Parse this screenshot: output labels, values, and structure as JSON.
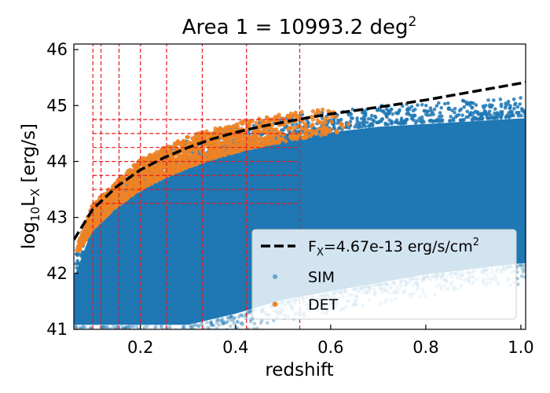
{
  "chart_data": {
    "type": "scatter",
    "title": "Area 1 = 10993.2 deg",
    "title_superscript": "2",
    "xlabel": "redshift",
    "ylabel_main": "log",
    "ylabel_sub": "10",
    "ylabel_L": "L",
    "ylabel_Lsub": "X",
    "ylabel_units": " [erg/s]",
    "xlim": [
      0.06,
      1.01
    ],
    "ylim": [
      41,
      46.1
    ],
    "xticks": [
      0.2,
      0.4,
      0.6,
      0.8,
      1.0
    ],
    "xtick_labels": [
      "0.2",
      "0.4",
      "0.6",
      "0.8",
      "1.0"
    ],
    "yticks": [
      41,
      42,
      43,
      44,
      45,
      46
    ],
    "ytick_labels": [
      "41",
      "42",
      "43",
      "44",
      "45",
      "46"
    ],
    "series": [
      {
        "name": "SIM",
        "color": "#1f77b4",
        "description_points": "dense cloud",
        "upper_edge": [
          [
            0.06,
            42.0
          ],
          [
            0.1,
            42.9
          ],
          [
            0.2,
            43.7
          ],
          [
            0.3,
            44.1
          ],
          [
            0.4,
            44.35
          ],
          [
            0.5,
            44.5
          ],
          [
            0.6,
            44.6
          ],
          [
            0.7,
            44.7
          ],
          [
            0.8,
            44.75
          ],
          [
            0.9,
            44.8
          ],
          [
            1.0,
            44.85
          ]
        ],
        "lower_edge": [
          [
            0.06,
            41.0
          ],
          [
            0.2,
            41.0
          ],
          [
            0.3,
            41.0
          ],
          [
            0.4,
            41.2
          ],
          [
            0.5,
            41.45
          ],
          [
            0.6,
            41.6
          ],
          [
            0.7,
            41.75
          ],
          [
            0.8,
            41.9
          ],
          [
            0.9,
            42.0
          ],
          [
            1.0,
            42.1
          ]
        ]
      },
      {
        "name": "DET",
        "color": "#ff7f0e",
        "edge_color": "#c88c5a"
      }
    ],
    "flux_limit": {
      "label_F": "F",
      "label_sub": "X",
      "label_rest": "=4.67e-13 erg/s/cm",
      "label_sup": "2",
      "color": "#000000",
      "points": [
        [
          0.06,
          42.6
        ],
        [
          0.1,
          43.15
        ],
        [
          0.15,
          43.55
        ],
        [
          0.2,
          43.85
        ],
        [
          0.25,
          44.07
        ],
        [
          0.3,
          44.25
        ],
        [
          0.35,
          44.4
        ],
        [
          0.4,
          44.52
        ],
        [
          0.45,
          44.62
        ],
        [
          0.5,
          44.7
        ],
        [
          0.55,
          44.78
        ],
        [
          0.6,
          44.85
        ],
        [
          0.7,
          44.97
        ],
        [
          0.8,
          45.1
        ],
        [
          0.9,
          45.25
        ],
        [
          1.0,
          45.4
        ],
        [
          1.01,
          45.42
        ]
      ]
    },
    "grid_lines": {
      "color": "#e41a1c",
      "vertical_x": [
        0.1,
        0.117,
        0.155,
        0.2,
        0.255,
        0.33,
        0.423,
        0.535
      ],
      "horizontal_y": [
        43.25,
        43.5,
        43.75,
        44.0,
        44.25,
        44.5,
        44.75
      ],
      "vertical_top": 46.1
    },
    "legend": {
      "position": "lower-right",
      "entries": [
        "FX=4.67e-13 erg/s/cm2",
        "SIM",
        "DET"
      ],
      "sim_label": "SIM",
      "det_label": "DET"
    }
  }
}
